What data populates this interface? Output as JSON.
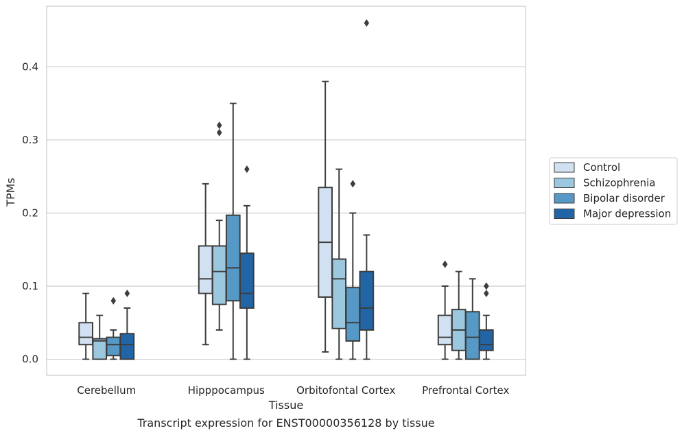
{
  "chart_data": {
    "type": "box",
    "title": "",
    "caption": "Transcript expression for ENST00000356128 by tissue",
    "xlabel": "Tissue",
    "ylabel": "TPMs",
    "ylim": [
      -0.022,
      0.483
    ],
    "yticks": [
      0.0,
      0.1,
      0.2,
      0.3,
      0.4
    ],
    "ytick_labels": [
      "0.0",
      "0.1",
      "0.2",
      "0.3",
      "0.4"
    ],
    "grid": "horizontal",
    "legend_placement": "right",
    "categories": [
      "Cerebellum",
      "Hipppocampus",
      "Orbitofontal Cortex",
      "Prefrontal Cortex"
    ],
    "series": [
      {
        "name": "Control",
        "color": "#d1e1f1",
        "boxes": [
          {
            "min": 0.0,
            "q1": 0.02,
            "median": 0.03,
            "q3": 0.05,
            "max": 0.09,
            "outliers": []
          },
          {
            "min": 0.02,
            "q1": 0.09,
            "median": 0.11,
            "q3": 0.155,
            "max": 0.24,
            "outliers": []
          },
          {
            "min": 0.01,
            "q1": 0.085,
            "median": 0.16,
            "q3": 0.235,
            "max": 0.38,
            "outliers": []
          },
          {
            "min": 0.0,
            "q1": 0.02,
            "median": 0.03,
            "q3": 0.06,
            "max": 0.1,
            "outliers": [
              0.13
            ]
          }
        ]
      },
      {
        "name": "Schizophrenia",
        "color": "#9bc7df",
        "boxes": [
          {
            "min": 0.0,
            "q1": 0.0,
            "median": 0.025,
            "q3": 0.028,
            "max": 0.06,
            "outliers": []
          },
          {
            "min": 0.04,
            "q1": 0.075,
            "median": 0.12,
            "q3": 0.155,
            "max": 0.19,
            "outliers": [
              0.31,
              0.32
            ]
          },
          {
            "min": 0.0,
            "q1": 0.042,
            "median": 0.11,
            "q3": 0.137,
            "max": 0.26,
            "outliers": []
          },
          {
            "min": 0.0,
            "q1": 0.012,
            "median": 0.04,
            "q3": 0.068,
            "max": 0.12,
            "outliers": []
          }
        ]
      },
      {
        "name": "Bipolar disorder",
        "color": "#5699c6",
        "boxes": [
          {
            "min": 0.0,
            "q1": 0.005,
            "median": 0.02,
            "q3": 0.03,
            "max": 0.04,
            "outliers": [
              0.08
            ]
          },
          {
            "min": 0.0,
            "q1": 0.08,
            "median": 0.125,
            "q3": 0.197,
            "max": 0.35,
            "outliers": []
          },
          {
            "min": 0.0,
            "q1": 0.025,
            "median": 0.05,
            "q3": 0.098,
            "max": 0.2,
            "outliers": [
              0.24
            ]
          },
          {
            "min": 0.0,
            "q1": 0.0,
            "median": 0.03,
            "q3": 0.065,
            "max": 0.11,
            "outliers": []
          }
        ]
      },
      {
        "name": "Major depression",
        "color": "#2265a7",
        "boxes": [
          {
            "min": 0.0,
            "q1": 0.0,
            "median": 0.02,
            "q3": 0.035,
            "max": 0.07,
            "outliers": [
              0.09
            ]
          },
          {
            "min": 0.0,
            "q1": 0.07,
            "median": 0.09,
            "q3": 0.145,
            "max": 0.21,
            "outliers": [
              0.26
            ]
          },
          {
            "min": 0.0,
            "q1": 0.04,
            "median": 0.07,
            "q3": 0.12,
            "max": 0.17,
            "outliers": [
              0.46
            ]
          },
          {
            "min": 0.0,
            "q1": 0.012,
            "median": 0.02,
            "q3": 0.04,
            "max": 0.06,
            "outliers": [
              0.09,
              0.1
            ]
          }
        ]
      }
    ]
  }
}
